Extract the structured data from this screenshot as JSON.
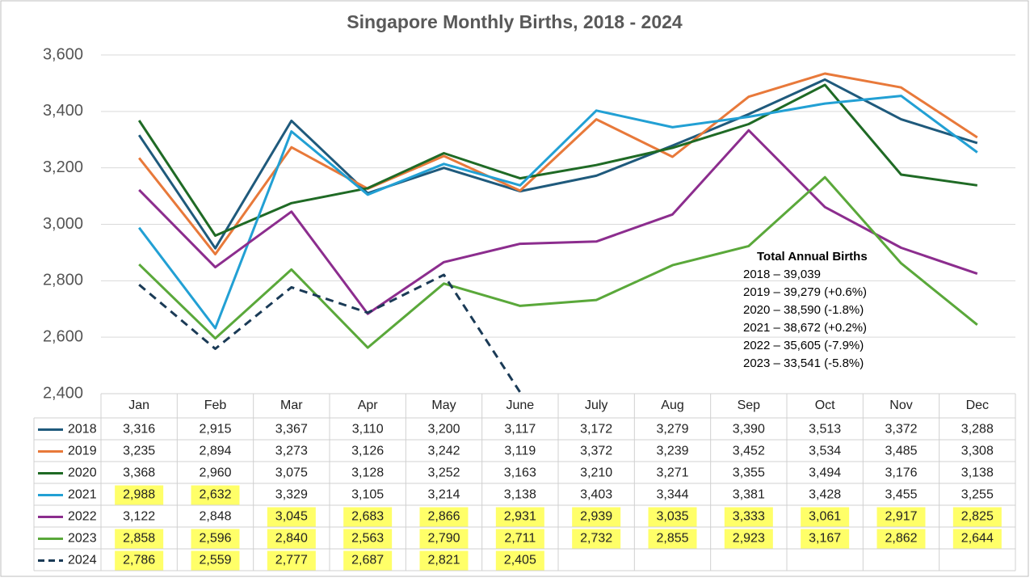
{
  "chart_data": {
    "type": "line",
    "title": "Singapore Monthly Births, 2018 - 2024",
    "categories": [
      "Jan",
      "Feb",
      "Mar",
      "Apr",
      "May",
      "June",
      "July",
      "Aug",
      "Sep",
      "Oct",
      "Nov",
      "Dec"
    ],
    "ylim": [
      2400,
      3600
    ],
    "yticks": [
      {
        "value": 2400,
        "label": "2,400"
      },
      {
        "value": 2600,
        "label": "2,600"
      },
      {
        "value": 2800,
        "label": "2,800"
      },
      {
        "value": 3000,
        "label": "3,000"
      },
      {
        "value": 3200,
        "label": "3,200"
      },
      {
        "value": 3400,
        "label": "3,400"
      },
      {
        "value": 3600,
        "label": "3,600"
      }
    ],
    "grid": true,
    "data_table": true,
    "highlight_color": "#ffff4d",
    "series": [
      {
        "name": "2018",
        "color": "#1f5a7c",
        "values": [
          3316,
          2915,
          3367,
          3110,
          3200,
          3117,
          3172,
          3279,
          3390,
          3513,
          3372,
          3288
        ],
        "value_labels": [
          "3,316",
          "2,915",
          "3,367",
          "3,110",
          "3,200",
          "3,117",
          "3,172",
          "3,279",
          "3,390",
          "3,513",
          "3,372",
          "3,288"
        ],
        "highlighted": []
      },
      {
        "name": "2019",
        "color": "#e8793a",
        "values": [
          3235,
          2894,
          3273,
          3126,
          3242,
          3119,
          3372,
          3239,
          3452,
          3534,
          3485,
          3308
        ],
        "value_labels": [
          "3,235",
          "2,894",
          "3,273",
          "3,126",
          "3,242",
          "3,119",
          "3,372",
          "3,239",
          "3,452",
          "3,534",
          "3,485",
          "3,308"
        ],
        "highlighted": []
      },
      {
        "name": "2020",
        "color": "#1f6a25",
        "values": [
          3368,
          2960,
          3075,
          3128,
          3252,
          3163,
          3210,
          3271,
          3355,
          3494,
          3176,
          3138
        ],
        "value_labels": [
          "3,368",
          "2,960",
          "3,075",
          "3,128",
          "3,252",
          "3,163",
          "3,210",
          "3,271",
          "3,355",
          "3,494",
          "3,176",
          "3,138"
        ],
        "highlighted": []
      },
      {
        "name": "2021",
        "color": "#22a0d4",
        "values": [
          2988,
          2632,
          3329,
          3105,
          3214,
          3138,
          3403,
          3344,
          3381,
          3428,
          3455,
          3255
        ],
        "value_labels": [
          "2,988",
          "2,632",
          "3,329",
          "3,105",
          "3,214",
          "3,138",
          "3,403",
          "3,344",
          "3,381",
          "3,428",
          "3,455",
          "3,255"
        ],
        "highlighted": [
          0,
          1
        ]
      },
      {
        "name": "2022",
        "color": "#8c2d8e",
        "values": [
          3122,
          2848,
          3045,
          2683,
          2866,
          2931,
          2939,
          3035,
          3333,
          3061,
          2917,
          2825
        ],
        "value_labels": [
          "3,122",
          "2,848",
          "3,045",
          "2,683",
          "2,866",
          "2,931",
          "2,939",
          "3,035",
          "3,333",
          "3,061",
          "2,917",
          "2,825"
        ],
        "highlighted": [
          2,
          3,
          4,
          5,
          6,
          7,
          8,
          9,
          10,
          11
        ]
      },
      {
        "name": "2023",
        "color": "#5aa83a",
        "values": [
          2858,
          2596,
          2840,
          2563,
          2790,
          2711,
          2732,
          2855,
          2923,
          3167,
          2862,
          2644
        ],
        "value_labels": [
          "2,858",
          "2,596",
          "2,840",
          "2,563",
          "2,790",
          "2,711",
          "2,732",
          "2,855",
          "2,923",
          "3,167",
          "2,862",
          "2,644"
        ],
        "highlighted": [
          0,
          1,
          2,
          3,
          4,
          5,
          6,
          7,
          8,
          9,
          10,
          11
        ]
      },
      {
        "name": "2024",
        "color": "#1a3a56",
        "dashed": true,
        "values": [
          2786,
          2559,
          2777,
          2687,
          2821,
          2405,
          null,
          null,
          null,
          null,
          null,
          null
        ],
        "value_labels": [
          "2,786",
          "2,559",
          "2,777",
          "2,687",
          "2,821",
          "2,405",
          null,
          null,
          null,
          null,
          null,
          null
        ],
        "highlighted": [
          0,
          1,
          2,
          3,
          4,
          5
        ]
      }
    ],
    "annotation": {
      "title": "Total Annual Births",
      "lines": [
        "2018 – 39,039",
        "2019 – 39,279 (+0.6%)",
        "2020 – 38,590 (-1.8%)",
        "2021 – 38,672 (+0.2%)",
        "2022 – 35,605 (-7.9%)",
        "2023 – 33,541 (-5.8%)"
      ]
    }
  }
}
